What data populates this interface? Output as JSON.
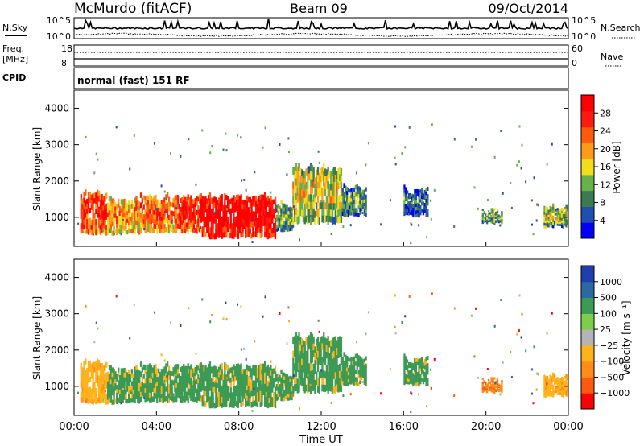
{
  "header": {
    "station": "McMurdo (fitACF)",
    "beam": "Beam 09",
    "date": "09/Oct/2014"
  },
  "summary": {
    "nsky_label": "N.Sky",
    "nsky_top": "10^5",
    "nsky_bottom": "10^0",
    "nsearch_label": "N.Search",
    "nsearch_top": "10^5",
    "nsearch_bottom": "10^0",
    "freq_label_line1": "Freq.",
    "freq_label_line2": "[MHz]",
    "freq_top": "18",
    "freq_bottom": "8",
    "nave_label": "Nave",
    "nave_top": "60",
    "nave_bottom": "0",
    "cpid_label": "CPID",
    "cpid_text": "normal (fast) 151 RF"
  },
  "colors": {
    "power": [
      "#0000ff",
      "#1f4fb0",
      "#3c7a54",
      "#68b04a",
      "#f2dc1e",
      "#ff9a1a",
      "#ff5a10",
      "#ff1a10",
      "#ff0000"
    ],
    "velocity": [
      "#ff0000",
      "#ff5a10",
      "#ff8c1a",
      "#ffb21a",
      "#b4b4b4",
      "#7ccf4a",
      "#3c9a54",
      "#2a6aa0",
      "#1f3fb0"
    ]
  },
  "chart_data": [
    {
      "type": "heatmap",
      "name": "power",
      "ylabel": "Slant Range [km]",
      "y_ticks": [
        "1000",
        "2000",
        "3000",
        "4000"
      ],
      "ylim": [
        200,
        4500
      ],
      "colorbar_label": "Power [dB]",
      "colorbar_ticks": [
        "4",
        "8",
        "12",
        "16",
        "20",
        "24",
        "28"
      ],
      "colorbar_range": [
        0,
        30
      ],
      "echo_regions": [
        {
          "t0": 0.3,
          "t1": 1.6,
          "r0": 500,
          "r1": 1600,
          "power": 24
        },
        {
          "t0": 1.6,
          "t1": 3.2,
          "r0": 500,
          "r1": 1400,
          "power": 18
        },
        {
          "t0": 3.2,
          "t1": 5.0,
          "r0": 550,
          "r1": 1500,
          "power": 20
        },
        {
          "t0": 5.0,
          "t1": 6.2,
          "r0": 550,
          "r1": 1500,
          "power": 24
        },
        {
          "t0": 6.2,
          "t1": 9.8,
          "r0": 400,
          "r1": 1500,
          "power": 28
        },
        {
          "t0": 9.8,
          "t1": 10.6,
          "r0": 600,
          "r1": 1300,
          "power": 10
        },
        {
          "t0": 10.6,
          "t1": 13.0,
          "r0": 800,
          "r1": 2300,
          "power": 14
        },
        {
          "t0": 13.0,
          "t1": 14.2,
          "r0": 1000,
          "r1": 1800,
          "power": 8
        },
        {
          "t0": 16.0,
          "t1": 17.2,
          "r0": 1000,
          "r1": 1700,
          "power": 6
        },
        {
          "t0": 19.8,
          "t1": 20.8,
          "r0": 800,
          "r1": 1100,
          "power": 10
        },
        {
          "t0": 22.8,
          "t1": 24.0,
          "r0": 700,
          "r1": 1200,
          "power": 12
        }
      ]
    },
    {
      "type": "heatmap",
      "name": "velocity",
      "ylabel": "Slant Range [km]",
      "y_ticks": [
        "1000",
        "2000",
        "3000",
        "4000"
      ],
      "ylim": [
        200,
        4500
      ],
      "colorbar_label": "Velocity [m s⁻¹]",
      "colorbar_ticks": [
        "1000",
        "500",
        "100",
        "25",
        "−25",
        "−100",
        "−500",
        "−1000"
      ],
      "echo_regions": [
        {
          "t0": 0.3,
          "t1": 1.6,
          "r0": 500,
          "r1": 1600,
          "velocity": -100
        },
        {
          "t0": 1.6,
          "t1": 3.2,
          "r0": 500,
          "r1": 1400,
          "velocity": 100
        },
        {
          "t0": 3.2,
          "t1": 5.0,
          "r0": 550,
          "r1": 1500,
          "velocity": 100
        },
        {
          "t0": 5.0,
          "t1": 6.2,
          "r0": 550,
          "r1": 1500,
          "velocity": 100
        },
        {
          "t0": 6.2,
          "t1": 9.8,
          "r0": 400,
          "r1": 1500,
          "velocity": 100
        },
        {
          "t0": 9.8,
          "t1": 10.6,
          "r0": 600,
          "r1": 1300,
          "velocity": 100
        },
        {
          "t0": 10.6,
          "t1": 13.0,
          "r0": 800,
          "r1": 2300,
          "velocity": 100
        },
        {
          "t0": 13.0,
          "t1": 14.2,
          "r0": 1000,
          "r1": 1800,
          "velocity": 100
        },
        {
          "t0": 16.0,
          "t1": 17.2,
          "r0": 1000,
          "r1": 1700,
          "velocity": 100
        },
        {
          "t0": 19.8,
          "t1": 20.8,
          "r0": 800,
          "r1": 1100,
          "velocity": -500
        },
        {
          "t0": 22.8,
          "t1": 24.0,
          "r0": 700,
          "r1": 1200,
          "velocity": -100
        }
      ],
      "xlabel": "Time UT",
      "x_ticks": [
        "00:00",
        "04:00",
        "08:00",
        "12:00",
        "16:00",
        "20:00",
        "00:00"
      ],
      "xlim": [
        0,
        24
      ]
    }
  ]
}
